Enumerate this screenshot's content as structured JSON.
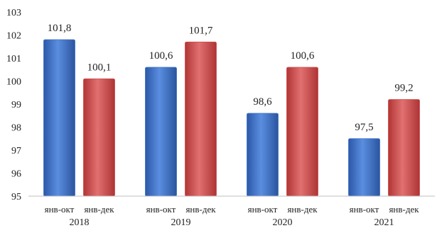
{
  "chart_data": {
    "type": "bar",
    "title": "",
    "xlabel": "",
    "ylabel": "",
    "ylim": [
      95,
      103
    ],
    "yticks": [
      "95",
      "96",
      "97",
      "98",
      "99",
      "100",
      "101",
      "102",
      "103"
    ],
    "groups": [
      {
        "year": "2018",
        "bars": [
          {
            "category": "янв-окт",
            "value": 101.8,
            "label": "101,8",
            "color": "#3b6fc4"
          },
          {
            "category": "янв-дек",
            "value": 100.1,
            "label": "100,1",
            "color": "#cc4a4a"
          }
        ]
      },
      {
        "year": "2019",
        "bars": [
          {
            "category": "янв-окт",
            "value": 100.6,
            "label": "100,6",
            "color": "#3b6fc4"
          },
          {
            "category": "янв-дек",
            "value": 101.7,
            "label": "101,7",
            "color": "#cc4a4a"
          }
        ]
      },
      {
        "year": "2020",
        "bars": [
          {
            "category": "янв-окт",
            "value": 98.6,
            "label": "98,6",
            "color": "#3b6fc4"
          },
          {
            "category": "янв-дек",
            "value": 100.6,
            "label": "100,6",
            "color": "#cc4a4a"
          }
        ]
      },
      {
        "year": "2021",
        "bars": [
          {
            "category": "янв-окт",
            "value": 97.5,
            "label": "97,5",
            "color": "#3b6fc4"
          },
          {
            "category": "янв-дек",
            "value": 99.2,
            "label": "99,2",
            "color": "#cc4a4a"
          }
        ]
      }
    ],
    "grid": false,
    "legend": "none"
  }
}
